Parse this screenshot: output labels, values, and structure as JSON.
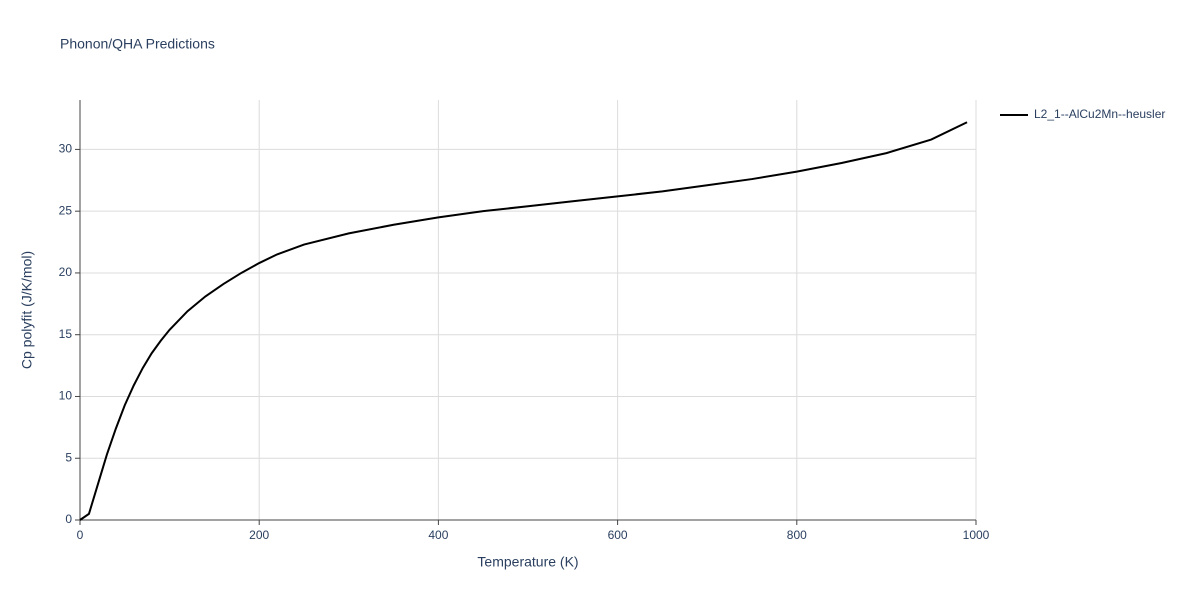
{
  "chart_data": {
    "type": "line",
    "title": "Phonon/QHA Predictions",
    "x_label": "Temperature (K)",
    "y_label": "Cp polyfit (J/K/mol)",
    "x": [
      0,
      10,
      20,
      30,
      40,
      50,
      60,
      70,
      80,
      90,
      100,
      120,
      140,
      160,
      180,
      200,
      220,
      250,
      300,
      350,
      400,
      450,
      500,
      550,
      600,
      650,
      700,
      750,
      800,
      850,
      900,
      950,
      990
    ],
    "series": [
      {
        "name": "L2_1--AlCu2Mn--heusler",
        "color": "#000000",
        "values": [
          0,
          0.5,
          2.9,
          5.3,
          7.4,
          9.3,
          10.9,
          12.3,
          13.5,
          14.5,
          15.4,
          16.9,
          18.1,
          19.1,
          20.0,
          20.8,
          21.5,
          22.3,
          23.2,
          23.9,
          24.5,
          25.0,
          25.4,
          25.8,
          26.2,
          26.6,
          27.1,
          27.6,
          28.2,
          28.9,
          29.7,
          30.8,
          32.2
        ]
      }
    ],
    "xlim": [
      0,
      1000
    ],
    "xticks": [
      0,
      200,
      400,
      600,
      800,
      1000
    ],
    "ylim": [
      0,
      34
    ],
    "yticks": [
      0,
      5,
      10,
      15,
      20,
      25,
      30
    ],
    "grid": true,
    "legend": "right"
  }
}
